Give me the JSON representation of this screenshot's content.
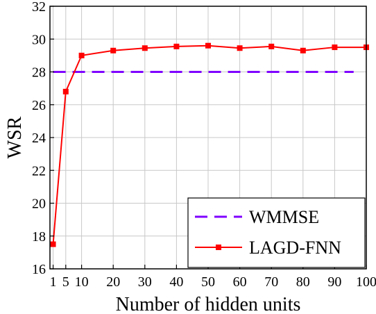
{
  "chart_data": {
    "type": "line",
    "xlabel": "Number of hidden units",
    "ylabel": "WSR",
    "xlim": [
      0,
      100
    ],
    "ylim": [
      16,
      32
    ],
    "x_ticks": [
      1,
      5,
      10,
      20,
      30,
      40,
      50,
      60,
      70,
      80,
      90,
      100
    ],
    "y_ticks": [
      16,
      18,
      20,
      22,
      24,
      26,
      28,
      30,
      32
    ],
    "grid": true,
    "legend_position": "bottom-right",
    "series": [
      {
        "name": "WMMSE",
        "style": "dashed",
        "color": "#7f00ff",
        "x": [
          1,
          96
        ],
        "y": [
          28.0,
          28.0
        ]
      },
      {
        "name": "LAGD-FNN",
        "style": "solid",
        "marker": "square",
        "color": "#ff0000",
        "x": [
          1,
          5,
          10,
          20,
          30,
          40,
          50,
          60,
          70,
          80,
          90,
          100
        ],
        "y": [
          17.5,
          26.8,
          29.0,
          29.3,
          29.45,
          29.55,
          29.6,
          29.45,
          29.55,
          29.3,
          29.5,
          29.5
        ]
      }
    ]
  }
}
